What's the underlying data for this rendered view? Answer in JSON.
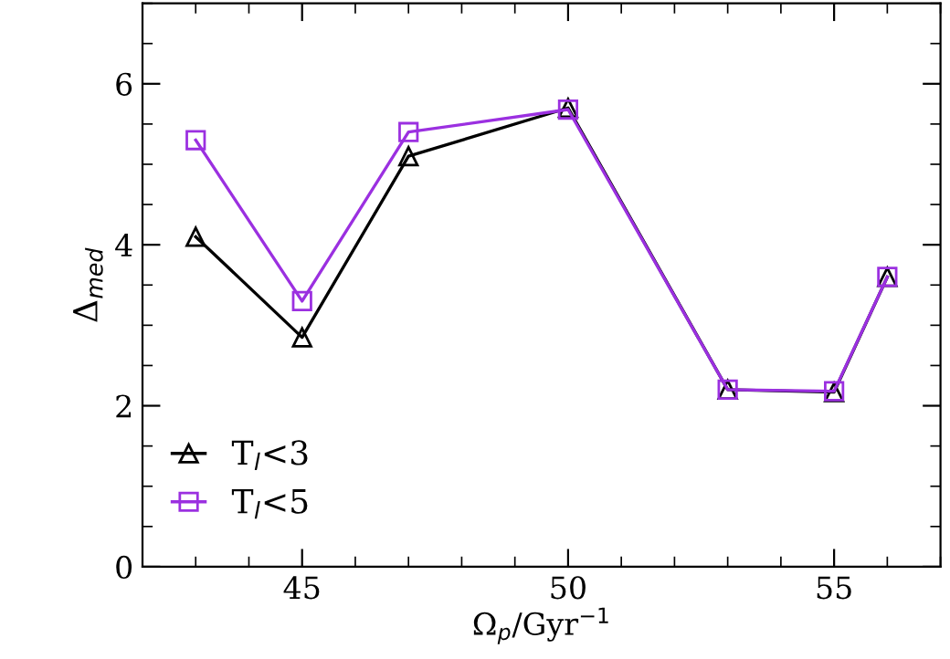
{
  "chart_data": {
    "type": "line",
    "xlabel": "Ω$_{p}$/Gyr$^{−1}$",
    "ylabel": "Δ$_{med}$",
    "x": [
      43,
      45,
      47,
      50,
      53,
      55,
      56
    ],
    "series": [
      {
        "name": "T$_{l}$<3",
        "color": "#000000",
        "marker": "triangle",
        "values": [
          4.1,
          2.85,
          5.1,
          5.7,
          2.2,
          2.17,
          3.6
        ]
      },
      {
        "name": "T$_{l}$<5",
        "color": "#9b30e0",
        "marker": "square",
        "values": [
          5.3,
          3.3,
          5.4,
          5.68,
          2.2,
          2.18,
          3.6
        ]
      }
    ],
    "xlim": [
      42,
      57
    ],
    "xticks": [
      45,
      50,
      55
    ],
    "ylim": [
      0,
      7
    ],
    "yticks": [
      0,
      2,
      4,
      6
    ],
    "grid": false,
    "legend": "bottom left",
    "line_style": "solid"
  }
}
